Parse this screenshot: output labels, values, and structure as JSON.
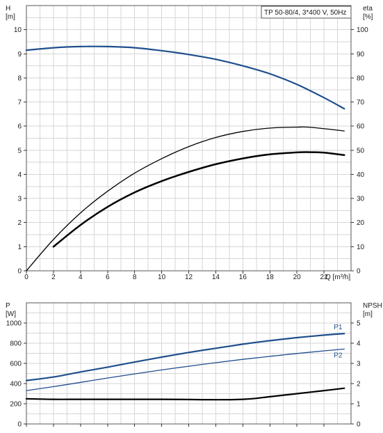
{
  "colors": {
    "blue": "#1f4e8c",
    "black": "#000000",
    "grid": "#d6d6d6"
  },
  "chart_data": [
    {
      "type": "line",
      "title": "TP 50-80/4, 3*400 V, 50Hz",
      "xlabel": "Q [m³/h]",
      "ylabel_left_line1": "H",
      "ylabel_left_line2": "[m]",
      "ylabel_right_line1": "eta",
      "ylabel_right_line2": "[%]",
      "xlim": [
        0,
        24
      ],
      "ylim_left": [
        0,
        11
      ],
      "ylim_right": [
        0,
        110
      ],
      "x_ticks": [
        "0",
        "2",
        "4",
        "6",
        "8",
        "10",
        "12",
        "14",
        "16",
        "18",
        "20",
        "22"
      ],
      "y_ticks_left": [
        "0",
        "1",
        "2",
        "3",
        "4",
        "5",
        "6",
        "7",
        "8",
        "9",
        "10"
      ],
      "y_ticks_right": [
        "0",
        "10",
        "20",
        "30",
        "40",
        "50",
        "60",
        "70",
        "80",
        "90",
        "100"
      ],
      "grid": true,
      "series": [
        {
          "axis": "left",
          "color": "#1f4e8c",
          "width": 2.2,
          "x": [
            0,
            2,
            4,
            6,
            8,
            10,
            12,
            14,
            16,
            18,
            20,
            22,
            23.5
          ],
          "y": [
            9.15,
            9.25,
            9.3,
            9.3,
            9.25,
            9.13,
            8.97,
            8.77,
            8.5,
            8.17,
            7.73,
            7.18,
            6.72
          ]
        },
        {
          "axis": "right",
          "color": "#000000",
          "width": 1.3,
          "x": [
            0,
            2,
            4,
            6,
            8,
            10,
            12,
            14,
            16,
            18,
            20,
            21,
            23.5
          ],
          "y": [
            0,
            13,
            24,
            33,
            40.5,
            46.5,
            51.5,
            55.3,
            57.8,
            59.2,
            59.6,
            59.5,
            58
          ]
        },
        {
          "axis": "right",
          "color": "#000000",
          "width": 2.5,
          "x": [
            2,
            4,
            6,
            8,
            10,
            12,
            14,
            16,
            18,
            20,
            21,
            22,
            23.5
          ],
          "y": [
            10,
            19,
            26.5,
            32.5,
            37.2,
            41,
            44.2,
            46.6,
            48.3,
            49.1,
            49.2,
            49,
            48
          ]
        }
      ]
    },
    {
      "type": "line",
      "ylabel_left_line1": "P",
      "ylabel_left_line2": "[W]",
      "ylabel_right_line1": "NPSH",
      "ylabel_right_line2": "[m]",
      "xlim": [
        0,
        24
      ],
      "ylim_left": [
        0,
        1200
      ],
      "ylim_right": [
        0,
        6
      ],
      "y_ticks_left": [
        "0",
        "200",
        "400",
        "600",
        "800",
        "1000"
      ],
      "y_ticks_right": [
        "0",
        "1",
        "2",
        "3",
        "4",
        "5"
      ],
      "grid": true,
      "series": [
        {
          "name": "P1",
          "axis": "left",
          "color": "#1f4e8c",
          "width": 2.2,
          "x": [
            0,
            2,
            4,
            6,
            8,
            10,
            12,
            14,
            16,
            18,
            20,
            22,
            23.5
          ],
          "y": [
            430,
            465,
            515,
            563,
            613,
            662,
            708,
            750,
            790,
            825,
            855,
            880,
            896
          ]
        },
        {
          "name": "P2",
          "axis": "left",
          "color": "#1f4e8c",
          "width": 1.3,
          "x": [
            0,
            2,
            4,
            6,
            8,
            10,
            12,
            14,
            16,
            18,
            20,
            22,
            23.5
          ],
          "y": [
            330,
            370,
            412,
            455,
            496,
            535,
            572,
            607,
            640,
            670,
            698,
            724,
            742
          ]
        },
        {
          "axis": "right",
          "color": "#000000",
          "width": 2.2,
          "x": [
            0,
            2,
            4,
            6,
            8,
            10,
            12,
            14,
            16,
            17,
            18,
            20,
            22,
            23.5
          ],
          "y": [
            1.25,
            1.22,
            1.22,
            1.22,
            1.22,
            1.22,
            1.21,
            1.2,
            1.22,
            1.27,
            1.35,
            1.5,
            1.65,
            1.77
          ]
        }
      ]
    }
  ]
}
